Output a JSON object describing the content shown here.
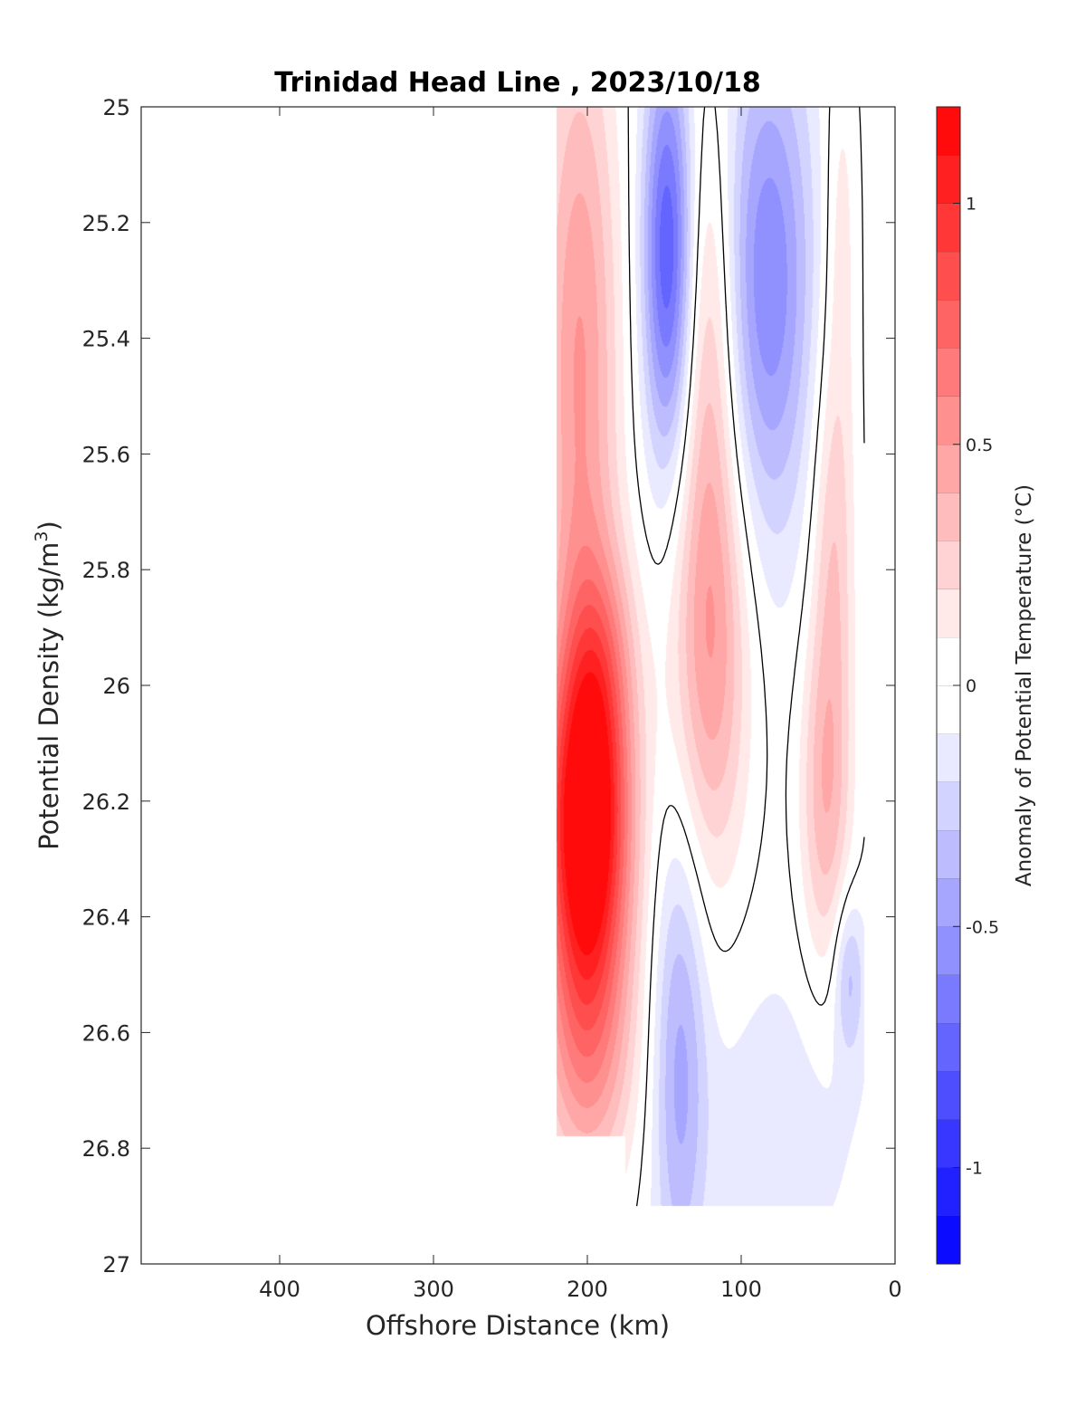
{
  "chart_data": {
    "type": "heatmap",
    "title": "Trinidad Head Line , 2023/10/18",
    "xlabel": "Offshore Distance (km)",
    "ylabel": "Potential Density (kg/m",
    "ylabel_sup": "3",
    "ylabel_close": ")",
    "colorbar_label": "Anomaly of Potential Temperature (°C)",
    "xlim": [
      490,
      0
    ],
    "ylim": [
      25,
      27
    ],
    "y_reversed": true,
    "x_ticks": [
      400,
      300,
      200,
      100,
      0
    ],
    "x_tick_labels": [
      "400",
      "300",
      "200",
      "100",
      "0"
    ],
    "y_ticks": [
      25,
      25.2,
      25.4,
      25.6,
      25.8,
      26,
      26.2,
      26.4,
      26.6,
      26.8,
      27
    ],
    "y_tick_labels": [
      "25",
      "25.2",
      "25.4",
      "25.6",
      "25.8",
      "26",
      "26.2",
      "26.4",
      "26.6",
      "26.8",
      "27"
    ],
    "colorbar_range": [
      -1.2,
      1.2
    ],
    "colorbar_step": 0.1,
    "colorbar_ticks": [
      1,
      0.5,
      0,
      -0.5,
      -1
    ],
    "colorbar_tick_labels": [
      "1",
      "0.5",
      "0",
      "-0.5",
      "-1"
    ],
    "contour_level": 0,
    "data_extent_x": [
      220,
      20
    ],
    "data_extent_y": [
      25,
      26.9
    ],
    "grid": false,
    "colormap": "blue-white-red diverging",
    "colors": {
      "positive": "#ff0000",
      "negative": "#0000ff",
      "zero": "#ffffff",
      "contour": "#000000"
    },
    "features": [
      {
        "type": "warm",
        "x": 200,
        "y": 26.25,
        "sx": 20,
        "sy": 0.22,
        "amp": 1.35
      },
      {
        "type": "warm",
        "x": 190,
        "y": 25.95,
        "sx": 16,
        "sy": 0.15,
        "amp": 0.3
      },
      {
        "type": "warm",
        "x": 205,
        "y": 25.45,
        "sx": 18,
        "sy": 0.45,
        "amp": 0.55
      },
      {
        "type": "warm",
        "x": 200,
        "y": 26.65,
        "sx": 22,
        "sy": 0.18,
        "amp": 0.45
      },
      {
        "type": "warm",
        "x": 120,
        "y": 25.95,
        "sx": 18,
        "sy": 0.28,
        "amp": 0.5
      },
      {
        "type": "warm",
        "x": 120,
        "y": 25.4,
        "sx": 12,
        "sy": 0.3,
        "amp": 0.3
      },
      {
        "type": "warm",
        "x": 45,
        "y": 26.2,
        "sx": 12,
        "sy": 0.22,
        "amp": 0.4
      },
      {
        "type": "warm",
        "x": 40,
        "y": 25.75,
        "sx": 10,
        "sy": 0.25,
        "amp": 0.3
      },
      {
        "type": "warm",
        "x": 35,
        "y": 25.2,
        "sx": 8,
        "sy": 0.25,
        "amp": 0.18
      },
      {
        "type": "cool",
        "x": 148,
        "y": 25.25,
        "sx": 11,
        "sy": 0.25,
        "amp": -0.75
      },
      {
        "type": "cool",
        "x": 82,
        "y": 25.3,
        "sx": 20,
        "sy": 0.3,
        "amp": -0.55
      },
      {
        "type": "cool",
        "x": 140,
        "y": 26.65,
        "sx": 12,
        "sy": 0.3,
        "amp": -0.38
      },
      {
        "type": "cool",
        "x": 30,
        "y": 26.5,
        "sx": 7,
        "sy": 0.1,
        "amp": -0.3
      },
      {
        "type": "cool",
        "x": 75,
        "y": 26.75,
        "sx": 40,
        "sy": 0.2,
        "amp": -0.12
      }
    ]
  }
}
